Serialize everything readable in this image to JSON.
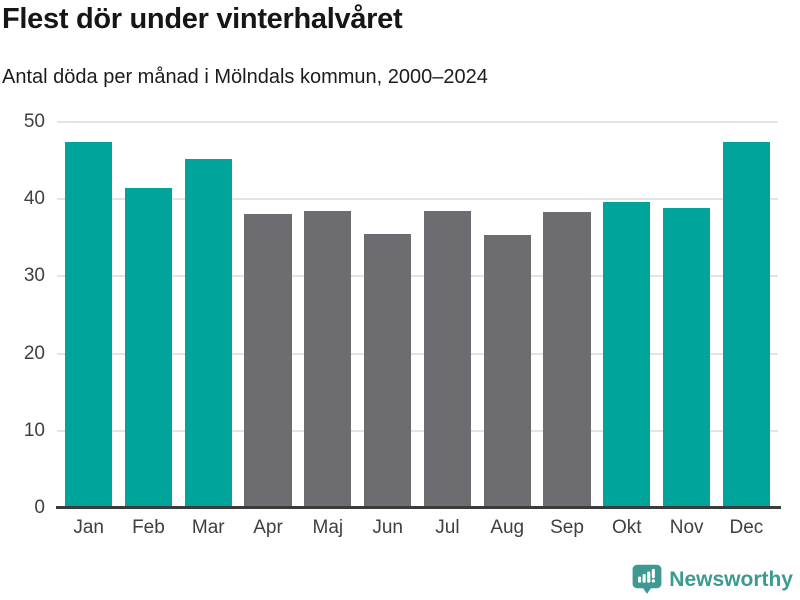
{
  "chart_data": {
    "type": "bar",
    "title": "Flest dör under vinterhalvåret",
    "subtitle": "Antal döda per månad i Mölndals kommun, 2000–2024",
    "categories": [
      "Jan",
      "Feb",
      "Mar",
      "Apr",
      "Maj",
      "Jun",
      "Jul",
      "Aug",
      "Sep",
      "Okt",
      "Nov",
      "Dec"
    ],
    "values": [
      47.4,
      41.4,
      45.2,
      38.1,
      38.5,
      35.5,
      38.5,
      35.4,
      38.3,
      39.7,
      38.9,
      47.4
    ],
    "bar_groups": [
      "winter",
      "winter",
      "winter",
      "summer",
      "summer",
      "summer",
      "summer",
      "summer",
      "summer",
      "winter",
      "winter",
      "winter"
    ],
    "colors": {
      "winter": "#00a49b",
      "summer": "#6d6d71"
    },
    "xlabel": "",
    "ylabel": "",
    "ylim": [
      0,
      50
    ],
    "yticks": [
      0,
      10,
      20,
      30,
      40,
      50
    ],
    "grid": "horizontal",
    "legend": "none"
  },
  "footer": {
    "brand": "Newsworthy",
    "brand_color": "#3d9a93",
    "logo_icon": "bar-chart-speech-bubble-icon"
  }
}
